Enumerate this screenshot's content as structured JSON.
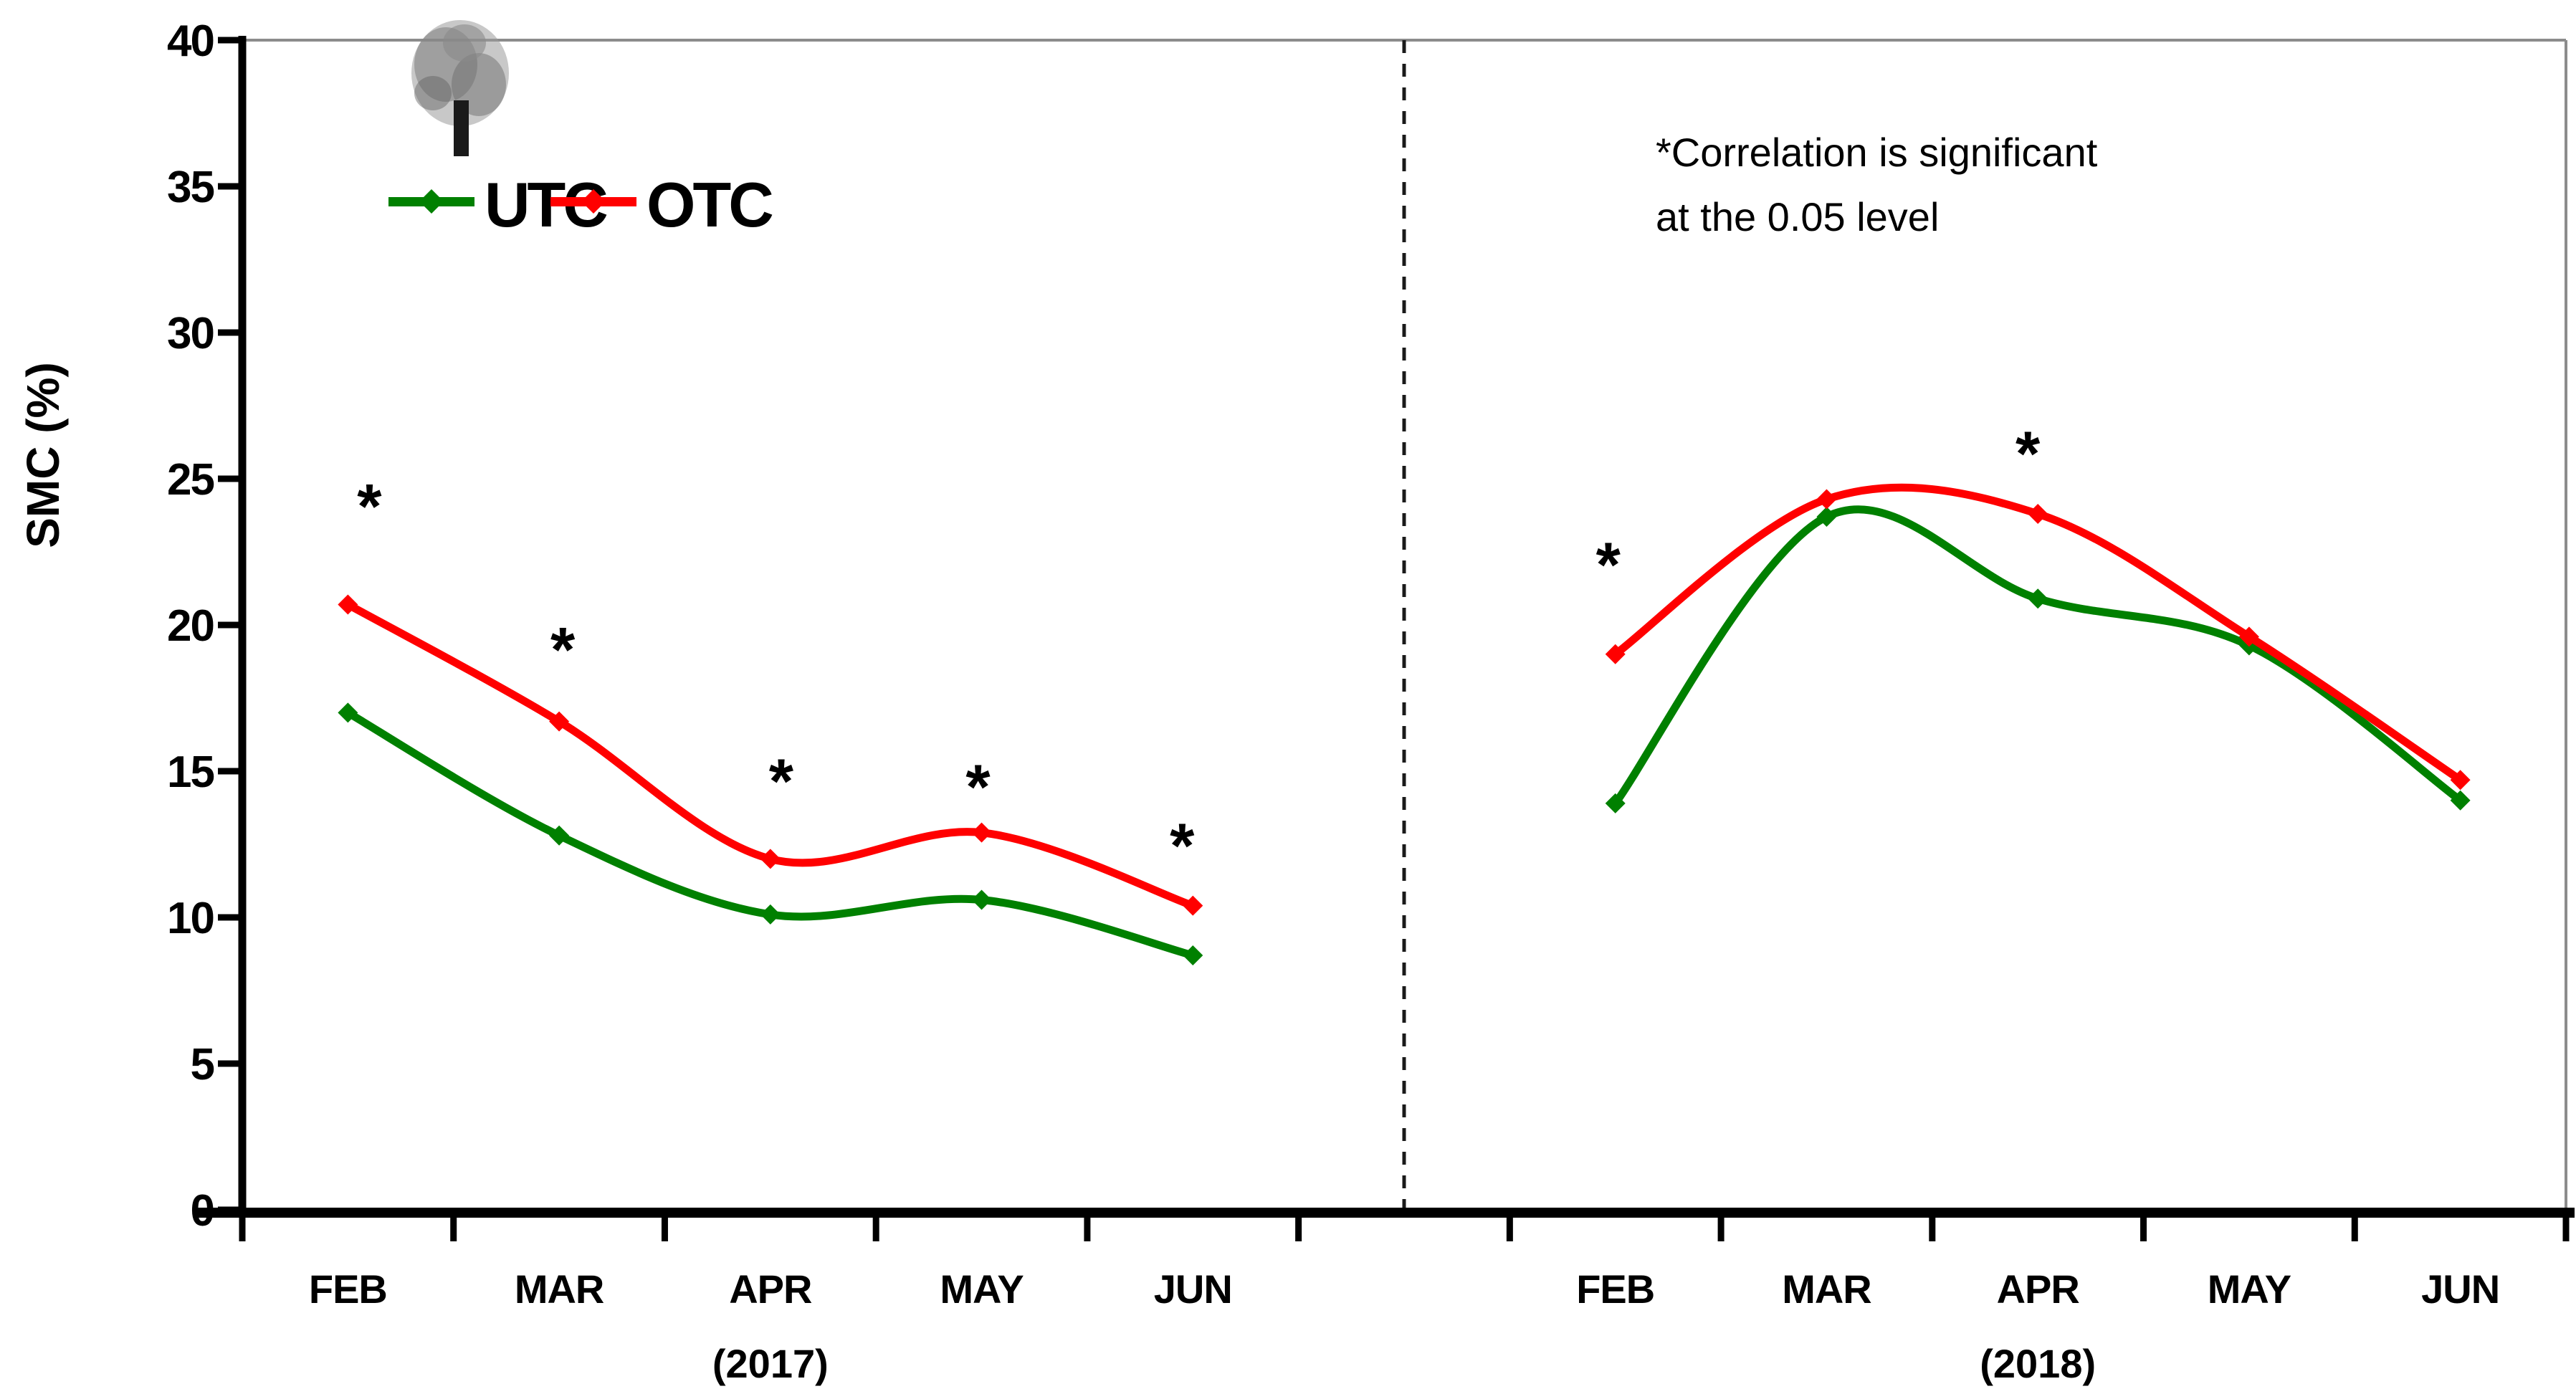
{
  "chart_data": {
    "type": "line",
    "title": "",
    "ylabel": "SMC (%)",
    "ylim": [
      0,
      40
    ],
    "ytick_step": 5,
    "ytick_labels": [
      "0",
      "5",
      "10",
      "15",
      "20",
      "25",
      "30",
      "35",
      "40"
    ],
    "grid": false,
    "legend_position": "top-left-inside",
    "legend": [
      {
        "label": "UTC",
        "color": "#008000"
      },
      {
        "label": "OTC",
        "color": "#ff0000"
      }
    ],
    "annotation": {
      "line1": "*Correlation is significant",
      "line2": "at the 0.05 level"
    },
    "divider_style": "vertical dashed line separating year panels",
    "icons": {
      "tree_icon": "small gray tree glyph above legend"
    },
    "panels": [
      {
        "year_label": "(2017)",
        "categories": [
          "FEB",
          "MAR",
          "APR",
          "MAY",
          "JUN"
        ],
        "series": [
          {
            "name": "UTC",
            "color": "#008000",
            "values": [
              17.0,
              12.8,
              10.1,
              10.6,
              8.7
            ]
          },
          {
            "name": "OTC",
            "color": "#ff0000",
            "values": [
              20.7,
              16.7,
              12.0,
              12.9,
              10.4
            ]
          }
        ],
        "significance_asterisks": [
          {
            "category": "FEB",
            "value": 24.4,
            "dx": 30
          },
          {
            "category": "MAR",
            "value": 19.5,
            "dx": 5
          },
          {
            "category": "APR",
            "value": 15.0,
            "dx": 15
          },
          {
            "category": "MAY",
            "value": 14.8,
            "dx": -5
          },
          {
            "category": "JUN",
            "value": 12.8,
            "dx": -15
          }
        ]
      },
      {
        "year_label": "(2018)",
        "categories": [
          "FEB",
          "MAR",
          "APR",
          "MAY",
          "JUN"
        ],
        "series": [
          {
            "name": "UTC",
            "color": "#008000",
            "values": [
              13.9,
              23.7,
              20.9,
              19.3,
              14.0
            ]
          },
          {
            "name": "OTC",
            "color": "#ff0000",
            "values": [
              19.0,
              24.3,
              23.8,
              19.6,
              14.7
            ]
          }
        ],
        "significance_asterisks": [
          {
            "category": "FEB",
            "value": 22.4,
            "dx": -10
          },
          {
            "category": "APR",
            "value": 26.2,
            "dx": -14
          }
        ]
      }
    ]
  },
  "colors": {
    "utc_green": "#008000",
    "otc_red": "#ff0000",
    "axis_black": "#000000",
    "border_gray": "#8c8c8c",
    "divider_black": "#1a1a1a"
  }
}
